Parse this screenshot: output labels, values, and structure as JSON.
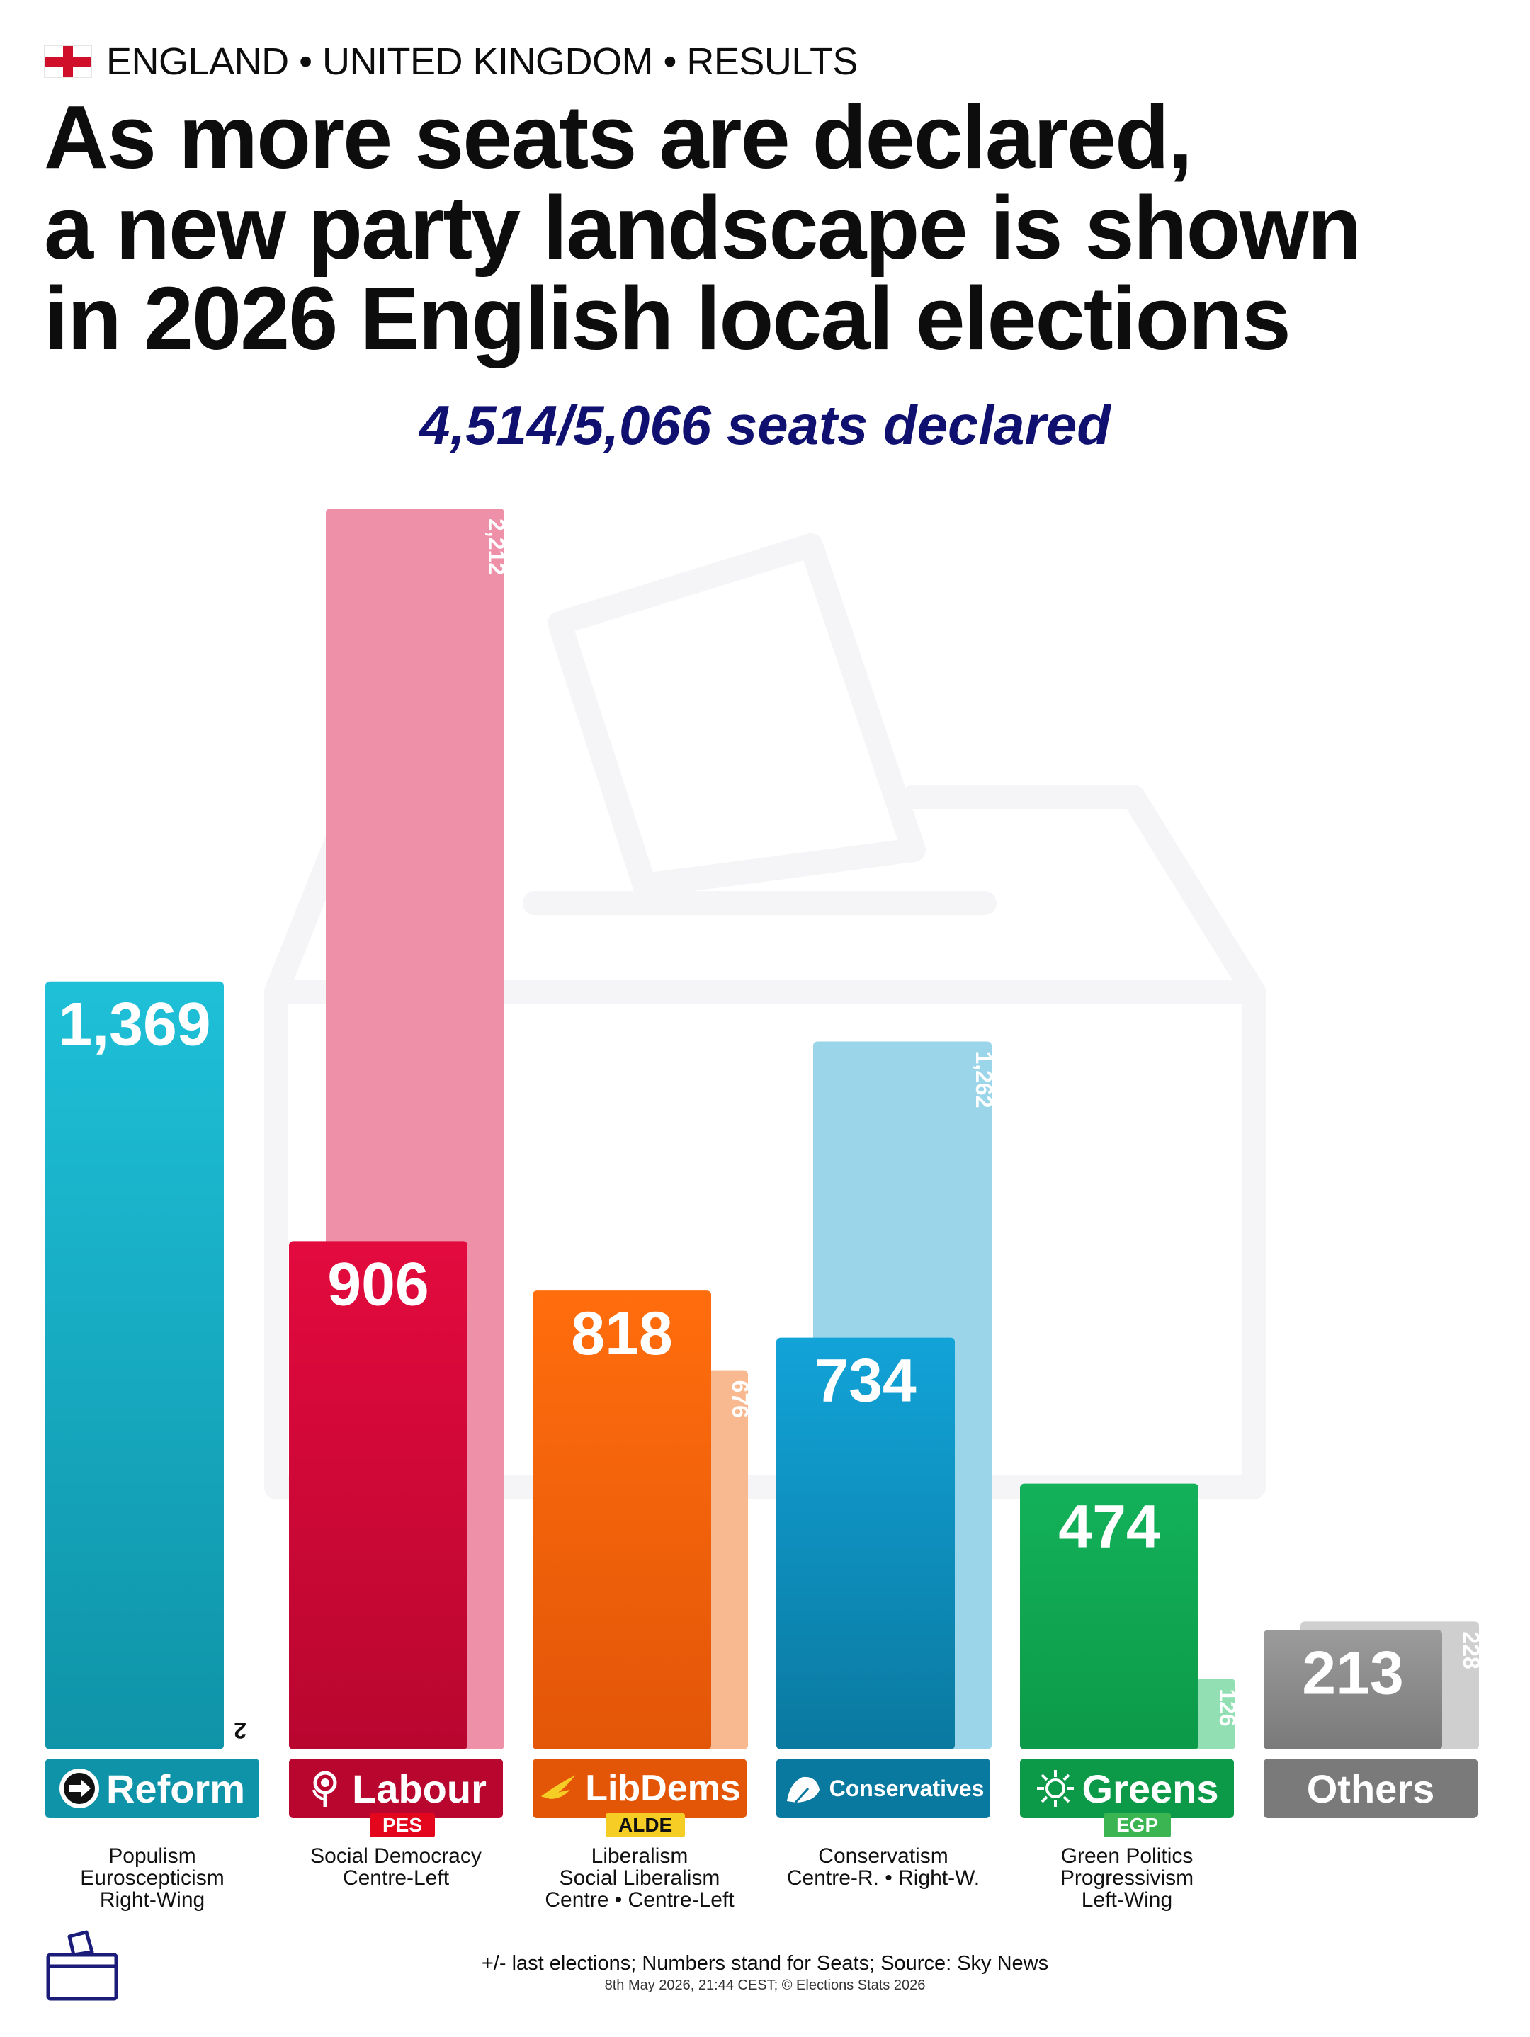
{
  "header": {
    "kicker": "ENGLAND • UNITED KINGDOM • RESULTS",
    "title_lines": [
      "As more seats are declared,",
      "a new party landscape is shown",
      "in 2026 English local elections"
    ],
    "subtitle": "4,514/5,066 seats declared"
  },
  "chart_data": {
    "type": "bar",
    "title": "As more seats are declared, a new party landscape is shown in 2026 English local elections",
    "subtitle": "4,514/5,066 seats declared",
    "categories": [
      "Reform",
      "Labour",
      "LibDems",
      "Conservatives",
      "Greens",
      "Others"
    ],
    "series": [
      {
        "name": "",
        "values": [
          1369,
          906,
          818,
          734,
          474,
          213
        ]
      },
      {
        "name": "last elections",
        "values": [
          2,
          2212,
          676,
          1262,
          126,
          228
        ]
      }
    ],
    "value_labels": [
      "1,369",
      "906",
      "818",
      "734",
      "474",
      "213"
    ],
    "previous_labels": [
      "2",
      "2,212",
      "676",
      "1,262",
      "126",
      "228"
    ],
    "ylim": [
      0,
      2212
    ],
    "grid": false,
    "legend": "none"
  },
  "parties": [
    {
      "name": "Reform",
      "group": "",
      "ideology": [
        "Populism",
        "Euroscepticism",
        "Right-Wing"
      ],
      "color_top": "#1ec0d8",
      "color_bottom": "#0f93a8",
      "prev_color": "#ffffff",
      "logo_icon": "reform-arrow-icon",
      "logo_text": "REFORM UK"
    },
    {
      "name": "Labour",
      "group": "PES",
      "ideology": [
        "Social Democracy",
        "Centre-Left"
      ],
      "color_top": "#e30a3e",
      "color_bottom": "#b8062f",
      "prev_color": "#ee90a8",
      "logo_icon": "rose-icon"
    },
    {
      "name": "LibDems",
      "group": "ALDE",
      "ideology": [
        "Liberalism",
        "Social Liberalism",
        "Centre • Centre-Left"
      ],
      "color_top": "#ff6d0d",
      "color_bottom": "#e35608",
      "prev_color": "#f8b890",
      "logo_icon": "bird-icon"
    },
    {
      "name": "Conservatives",
      "group": "",
      "ideology": [
        "Conservatism",
        "Centre-R. • Right-W."
      ],
      "color_top": "#12a3d8",
      "color_bottom": "#0a79a0",
      "prev_color": "#9bd5ea",
      "logo_icon": "tree-icon"
    },
    {
      "name": "Greens",
      "group": "EGP",
      "ideology": [
        "Green Politics",
        "Progressivism",
        "Left-Wing"
      ],
      "color_top": "#13b15a",
      "color_bottom": "#0c9a48",
      "prev_color": "#92dfb4",
      "logo_icon": "sun-globe-icon"
    },
    {
      "name": "Others",
      "group": "",
      "ideology": [],
      "color_top": "#9b9b9b",
      "color_bottom": "#7a7a7a",
      "prev_color": "#cfcfcf",
      "logo_icon": ""
    }
  ],
  "group_colors": {
    "PES": "#e3061c",
    "ALDE": "#f6cd24",
    "EGP": "#3ab551"
  },
  "footer": {
    "line1": "+/- last elections; Numbers stand for Seats; Source: Sky News",
    "line2": "8th May 2026, 21:44 CEST; © Elections Stats 2026"
  }
}
